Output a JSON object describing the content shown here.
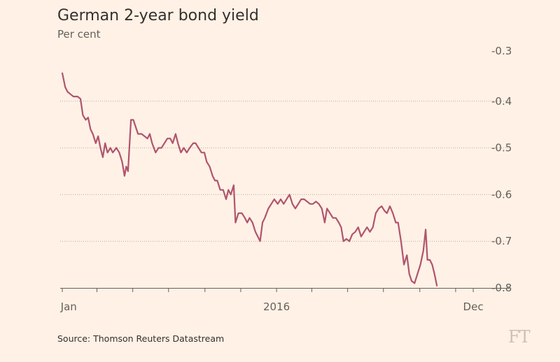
{
  "header": {
    "title": "German 2-year bond yield",
    "subtitle": "Per cent"
  },
  "footer": {
    "source": "Source: Thomson Reuters Datastream",
    "logo": "FT"
  },
  "colors": {
    "line": "#b0546f",
    "background": "#fff1e5",
    "grid": "#b5aaa0"
  },
  "chart_data": {
    "type": "line",
    "title": "German 2-year bond yield",
    "ylabel": "Per cent",
    "xlabel": "",
    "ylim": [
      -0.8,
      -0.3
    ],
    "yticks": [
      -0.3,
      -0.4,
      -0.5,
      -0.6,
      -0.7,
      -0.8
    ],
    "ytick_labels": [
      "-0.3",
      "-0.4",
      "-0.5",
      "-0.6",
      "-0.7",
      "-0.8"
    ],
    "xlim": [
      "2015-01-01",
      "2016-12-20"
    ],
    "xticks": [
      "2015-01-01",
      "2015-03-01",
      "2015-05-01",
      "2015-07-01",
      "2015-09-01",
      "2015-11-01",
      "2016-01-01",
      "2016-03-01",
      "2016-05-01",
      "2016-07-01",
      "2016-09-01",
      "2016-11-01",
      "2016-12-01"
    ],
    "xtick_labels": [
      {
        "date": "2015-01-12",
        "label": "Jan"
      },
      {
        "date": "2016-01-01",
        "label": "2016"
      },
      {
        "date": "2016-12-01",
        "label": "Dec"
      }
    ],
    "grid": true,
    "series": [
      {
        "values": [
          [
            "2015-01-01",
            -0.34
          ],
          [
            "2015-01-06",
            -0.37
          ],
          [
            "2015-01-10",
            -0.38
          ],
          [
            "2015-01-15",
            -0.385
          ],
          [
            "2015-01-20",
            -0.39
          ],
          [
            "2015-01-27",
            -0.39
          ],
          [
            "2015-02-01",
            -0.395
          ],
          [
            "2015-02-05",
            -0.43
          ],
          [
            "2015-02-10",
            -0.44
          ],
          [
            "2015-02-14",
            -0.435
          ],
          [
            "2015-02-18",
            -0.46
          ],
          [
            "2015-02-22",
            -0.47
          ],
          [
            "2015-02-27",
            -0.49
          ],
          [
            "2015-03-03",
            -0.475
          ],
          [
            "2015-03-07",
            -0.5
          ],
          [
            "2015-03-11",
            -0.52
          ],
          [
            "2015-03-15",
            -0.49
          ],
          [
            "2015-03-19",
            -0.51
          ],
          [
            "2015-03-24",
            -0.5
          ],
          [
            "2015-03-28",
            -0.51
          ],
          [
            "2015-04-03",
            -0.5
          ],
          [
            "2015-04-08",
            -0.51
          ],
          [
            "2015-04-13",
            -0.53
          ],
          [
            "2015-04-17",
            -0.56
          ],
          [
            "2015-04-20",
            -0.54
          ],
          [
            "2015-04-23",
            -0.55
          ],
          [
            "2015-04-28",
            -0.44
          ],
          [
            "2015-05-02",
            -0.44
          ],
          [
            "2015-05-06",
            -0.455
          ],
          [
            "2015-05-10",
            -0.47
          ],
          [
            "2015-05-16",
            -0.47
          ],
          [
            "2015-05-21",
            -0.475
          ],
          [
            "2015-05-26",
            -0.48
          ],
          [
            "2015-05-30",
            -0.47
          ],
          [
            "2015-06-03",
            -0.49
          ],
          [
            "2015-06-09",
            -0.51
          ],
          [
            "2015-06-14",
            -0.5
          ],
          [
            "2015-06-19",
            -0.5
          ],
          [
            "2015-06-24",
            -0.49
          ],
          [
            "2015-06-29",
            -0.48
          ],
          [
            "2015-07-04",
            -0.48
          ],
          [
            "2015-07-08",
            -0.49
          ],
          [
            "2015-07-13",
            -0.47
          ],
          [
            "2015-07-17",
            -0.49
          ],
          [
            "2015-07-22",
            -0.51
          ],
          [
            "2015-07-27",
            -0.5
          ],
          [
            "2015-08-01",
            -0.51
          ],
          [
            "2015-08-06",
            -0.5
          ],
          [
            "2015-08-12",
            -0.49
          ],
          [
            "2015-08-16",
            -0.49
          ],
          [
            "2015-08-21",
            -0.5
          ],
          [
            "2015-08-26",
            -0.51
          ],
          [
            "2015-08-31",
            -0.51
          ],
          [
            "2015-09-04",
            -0.53
          ],
          [
            "2015-09-09",
            -0.54
          ],
          [
            "2015-09-14",
            -0.56
          ],
          [
            "2015-09-18",
            -0.57
          ],
          [
            "2015-09-22",
            -0.57
          ],
          [
            "2015-09-27",
            -0.59
          ],
          [
            "2015-10-02",
            -0.59
          ],
          [
            "2015-10-07",
            -0.61
          ],
          [
            "2015-10-11",
            -0.59
          ],
          [
            "2015-10-15",
            -0.6
          ],
          [
            "2015-10-20",
            -0.58
          ],
          [
            "2015-10-23",
            -0.66
          ],
          [
            "2015-10-28",
            -0.64
          ],
          [
            "2015-11-03",
            -0.64
          ],
          [
            "2015-11-08",
            -0.65
          ],
          [
            "2015-11-12",
            -0.66
          ],
          [
            "2015-11-16",
            -0.65
          ],
          [
            "2015-11-21",
            -0.66
          ],
          [
            "2015-11-26",
            -0.68
          ],
          [
            "2015-11-30",
            -0.69
          ],
          [
            "2015-12-04",
            -0.7
          ],
          [
            "2015-12-08",
            -0.66
          ],
          [
            "2015-12-12",
            -0.65
          ],
          [
            "2015-12-18",
            -0.63
          ],
          [
            "2015-12-23",
            -0.62
          ],
          [
            "2015-12-28",
            -0.61
          ],
          [
            "2016-01-03",
            -0.62
          ],
          [
            "2016-01-08",
            -0.61
          ],
          [
            "2016-01-13",
            -0.62
          ],
          [
            "2016-01-18",
            -0.61
          ],
          [
            "2016-01-23",
            -0.6
          ],
          [
            "2016-01-28",
            -0.62
          ],
          [
            "2016-02-02",
            -0.63
          ],
          [
            "2016-02-07",
            -0.62
          ],
          [
            "2016-02-12",
            -0.61
          ],
          [
            "2016-02-17",
            -0.61
          ],
          [
            "2016-02-22",
            -0.615
          ],
          [
            "2016-02-27",
            -0.62
          ],
          [
            "2016-03-03",
            -0.62
          ],
          [
            "2016-03-08",
            -0.615
          ],
          [
            "2016-03-13",
            -0.62
          ],
          [
            "2016-03-18",
            -0.63
          ],
          [
            "2016-03-23",
            -0.66
          ],
          [
            "2016-03-27",
            -0.63
          ],
          [
            "2016-04-01",
            -0.64
          ],
          [
            "2016-04-06",
            -0.65
          ],
          [
            "2016-04-11",
            -0.65
          ],
          [
            "2016-04-16",
            -0.66
          ],
          [
            "2016-04-20",
            -0.67
          ],
          [
            "2016-04-24",
            -0.7
          ],
          [
            "2016-04-29",
            -0.695
          ],
          [
            "2016-05-04",
            -0.7
          ],
          [
            "2016-05-09",
            -0.685
          ],
          [
            "2016-05-14",
            -0.68
          ],
          [
            "2016-05-19",
            -0.67
          ],
          [
            "2016-05-24",
            -0.69
          ],
          [
            "2016-05-29",
            -0.68
          ],
          [
            "2016-06-03",
            -0.67
          ],
          [
            "2016-06-08",
            -0.68
          ],
          [
            "2016-06-13",
            -0.67
          ],
          [
            "2016-06-18",
            -0.64
          ],
          [
            "2016-06-23",
            -0.63
          ],
          [
            "2016-06-28",
            -0.625
          ],
          [
            "2016-07-03",
            -0.635
          ],
          [
            "2016-07-07",
            -0.64
          ],
          [
            "2016-07-12",
            -0.625
          ],
          [
            "2016-07-17",
            -0.64
          ],
          [
            "2016-07-22",
            -0.66
          ],
          [
            "2016-07-26",
            -0.66
          ],
          [
            "2016-07-31",
            -0.7
          ],
          [
            "2016-08-05",
            -0.75
          ],
          [
            "2016-08-10",
            -0.73
          ],
          [
            "2016-08-14",
            -0.77
          ],
          [
            "2016-08-18",
            -0.785
          ],
          [
            "2016-08-23",
            -0.79
          ],
          [
            "2016-08-28",
            -0.77
          ],
          [
            "2016-09-02",
            -0.75
          ],
          [
            "2016-09-07",
            -0.72
          ],
          [
            "2016-09-11",
            -0.675
          ],
          [
            "2016-09-14",
            -0.74
          ],
          [
            "2016-09-18",
            -0.74
          ],
          [
            "2016-09-22",
            -0.75
          ],
          [
            "2016-09-26",
            -0.77
          ],
          [
            "2016-09-30",
            -0.795
          ]
        ]
      }
    ]
  }
}
